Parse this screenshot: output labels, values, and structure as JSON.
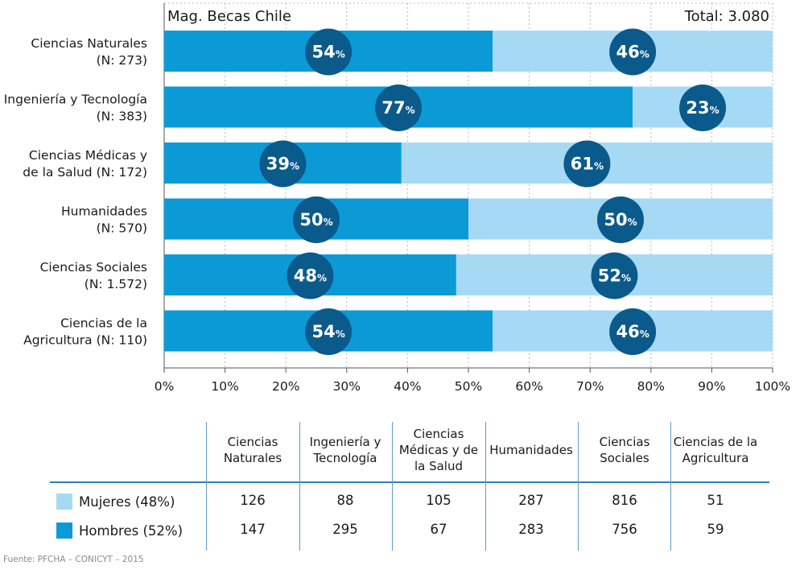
{
  "chart_data": {
    "type": "bar",
    "orientation": "horizontal",
    "stacked": "percent",
    "title": "Mag. Becas Chile",
    "total_label": "Total: 3.080",
    "categories": [
      {
        "line1": "Ciencias Naturales",
        "line2": "(N: 273)"
      },
      {
        "line1": "Ingeniería y Tecnología",
        "line2": "(N: 383)"
      },
      {
        "line1": "Ciencias Médicas y",
        "line2": "de la Salud (N: 172)"
      },
      {
        "line1": "Humanidades",
        "line2": "(N: 570)"
      },
      {
        "line1": "Ciencias Sociales",
        "line2": "(N: 1.572)"
      },
      {
        "line1": "Ciencias de la",
        "line2": "Agricultura (N: 110)"
      }
    ],
    "series": [
      {
        "name": "Hombres",
        "color": "#0c9ad7",
        "values": [
          54,
          77,
          39,
          50,
          48,
          54
        ]
      },
      {
        "name": "Mujeres",
        "color": "#a6daf4",
        "values": [
          46,
          23,
          61,
          50,
          52,
          46
        ]
      }
    ],
    "xlim": [
      0,
      100
    ],
    "x_ticks": [
      "0%",
      "10%",
      "20%",
      "30%",
      "40%",
      "50%",
      "60%",
      "70%",
      "80%",
      "90%",
      "100%"
    ],
    "percent_sign": "%",
    "grid": true,
    "badge_color": "#0a5a8c"
  },
  "table": {
    "columns": [
      [
        "Ciencias",
        "Naturales"
      ],
      [
        "Ingeniería y",
        "Tecnología"
      ],
      [
        "Ciencias",
        "Médicas y de",
        "la Salud"
      ],
      [
        "Humanidades"
      ],
      [
        "Ciencias",
        "Sociales"
      ],
      [
        "Ciencias de la",
        "Agricultura"
      ]
    ],
    "rows": [
      {
        "label": "Mujeres (48%)",
        "color": "#a6daf4",
        "values": [
          "126",
          "88",
          "105",
          "287",
          "816",
          "51"
        ]
      },
      {
        "label": "Hombres (52%)",
        "color": "#0c9ad7",
        "values": [
          "147",
          "295",
          "67",
          "283",
          "756",
          "59"
        ]
      }
    ]
  },
  "source": "Fuente: PFCHA – CONICYT – 2015"
}
